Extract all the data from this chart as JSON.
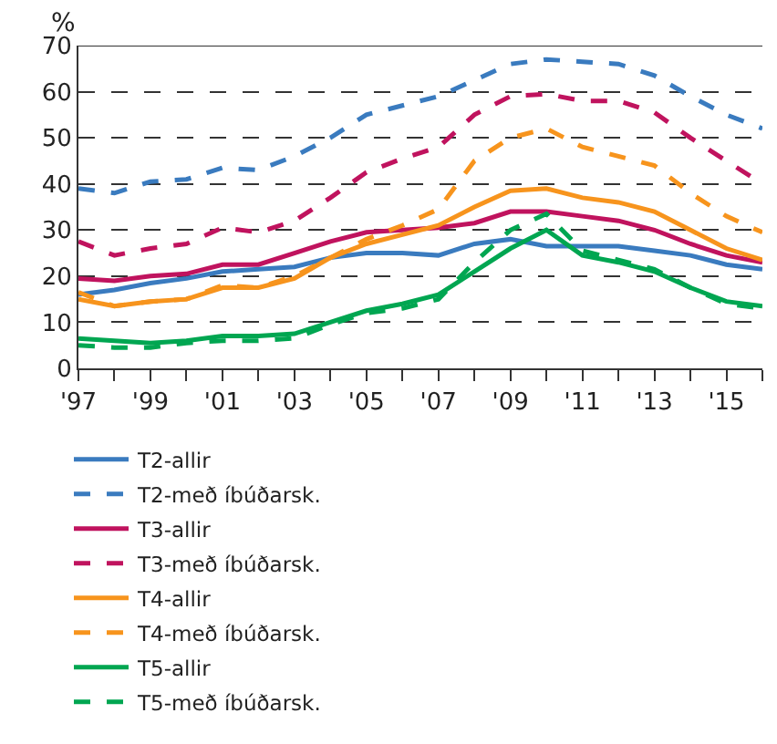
{
  "chart_data": {
    "type": "line",
    "ylabel": "%",
    "grid": "y",
    "legend": "bottom",
    "marker": "none",
    "x": [
      1997,
      1998,
      1999,
      2000,
      2001,
      2002,
      2003,
      2004,
      2005,
      2006,
      2007,
      2008,
      2009,
      2010,
      2011,
      2012,
      2013,
      2014,
      2015,
      2016
    ],
    "xlim": [
      1997,
      2016
    ],
    "xticks": [
      {
        "value": 1997,
        "label": "'97"
      },
      {
        "value": 1998,
        "label": null
      },
      {
        "value": 1999,
        "label": "'99"
      },
      {
        "value": 2000,
        "label": null
      },
      {
        "value": 2001,
        "label": "'01"
      },
      {
        "value": 2002,
        "label": null
      },
      {
        "value": 2003,
        "label": "'03"
      },
      {
        "value": 2004,
        "label": null
      },
      {
        "value": 2005,
        "label": "'05"
      },
      {
        "value": 2006,
        "label": null
      },
      {
        "value": 2007,
        "label": "'07"
      },
      {
        "value": 2008,
        "label": null
      },
      {
        "value": 2009,
        "label": "'09"
      },
      {
        "value": 2010,
        "label": null
      },
      {
        "value": 2011,
        "label": "'11"
      },
      {
        "value": 2012,
        "label": null
      },
      {
        "value": 2013,
        "label": "'13"
      },
      {
        "value": 2014,
        "label": null
      },
      {
        "value": 2015,
        "label": "'15"
      },
      {
        "value": 2016,
        "label": null
      }
    ],
    "ylim": [
      0,
      70
    ],
    "yticks": [
      0,
      10,
      20,
      30,
      40,
      50,
      60,
      70
    ],
    "series": [
      {
        "name": "T2-allir",
        "color": "#3a7bbf",
        "line_style": "solid",
        "values": [
          16,
          17,
          18.5,
          19.5,
          21,
          21.5,
          22,
          24,
          25,
          25,
          24.5,
          27,
          28,
          26.5,
          26.5,
          26.5,
          25.5,
          24.5,
          22.5,
          21.5
        ]
      },
      {
        "name": "T2-með íbúðarsk.",
        "color": "#3a7bbf",
        "line_style": "dashed",
        "values": [
          39,
          38,
          40.5,
          41,
          43.5,
          43,
          46,
          50,
          55,
          57,
          59,
          62.5,
          66,
          67,
          66.5,
          66,
          63.5,
          59,
          55,
          52
        ]
      },
      {
        "name": "T3-allir",
        "color": "#c0135e",
        "line_style": "solid",
        "values": [
          19.5,
          19,
          20,
          20.5,
          22.5,
          22.5,
          25,
          27.5,
          29.5,
          30,
          30.5,
          31.5,
          34,
          34,
          33,
          32,
          30,
          27,
          24.5,
          23
        ]
      },
      {
        "name": "T3-með íbúðarsk.",
        "color": "#c0135e",
        "line_style": "dashed",
        "values": [
          27.5,
          24.5,
          26,
          27,
          30.5,
          29.5,
          32,
          37,
          42.5,
          45.5,
          48,
          55,
          59,
          59.5,
          58,
          58,
          55.5,
          50,
          45,
          40
        ]
      },
      {
        "name": "T4-allir",
        "color": "#f7941d",
        "line_style": "solid",
        "values": [
          15,
          13.5,
          14.5,
          15,
          17.5,
          17.5,
          19.5,
          24,
          27,
          29,
          31,
          35,
          38.5,
          39,
          37,
          36,
          34,
          30,
          26,
          23.5
        ]
      },
      {
        "name": "T4-með íbúðarsk.",
        "color": "#f7941d",
        "line_style": "dashed",
        "values": [
          16.5,
          13.5,
          14.5,
          15,
          18,
          17.5,
          20,
          24,
          28,
          31,
          34.5,
          45,
          50,
          52,
          48,
          46,
          44,
          38,
          33,
          29.5
        ]
      },
      {
        "name": "T5-allir",
        "color": "#00a651",
        "line_style": "solid",
        "values": [
          6.5,
          6,
          5.5,
          6,
          7,
          7,
          7.5,
          10,
          12.5,
          14,
          16,
          21,
          26,
          30,
          24.5,
          23,
          21,
          17.5,
          14.5,
          13.5
        ]
      },
      {
        "name": "T5-með íbúðarsk.",
        "color": "#00a651",
        "line_style": "dashed",
        "values": [
          5,
          4.5,
          4.5,
          5.5,
          6,
          6,
          6.5,
          9.5,
          12,
          13,
          15,
          23,
          30,
          33.5,
          25.5,
          23.5,
          21.5,
          17.5,
          14,
          13
        ]
      }
    ]
  }
}
